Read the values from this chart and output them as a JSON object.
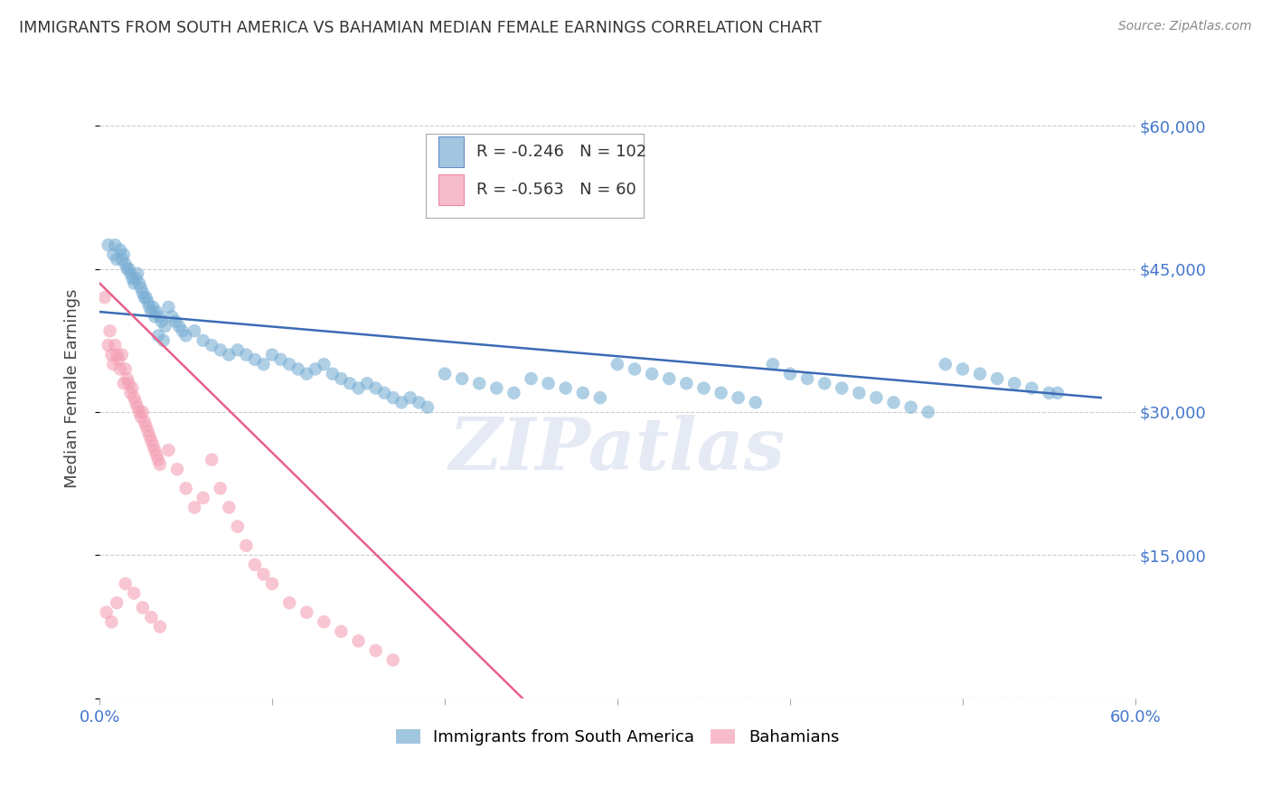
{
  "title": "IMMIGRANTS FROM SOUTH AMERICA VS BAHAMIAN MEDIAN FEMALE EARNINGS CORRELATION CHART",
  "source": "Source: ZipAtlas.com",
  "ylabel": "Median Female Earnings",
  "yticks": [
    0,
    15000,
    30000,
    45000,
    60000
  ],
  "ytick_labels": [
    "",
    "$15,000",
    "$30,000",
    "$45,000",
    "$60,000"
  ],
  "xlim": [
    0.0,
    0.6
  ],
  "ylim": [
    0,
    65000
  ],
  "legend1_label": "Immigrants from South America",
  "legend2_label": "Bahamians",
  "R1": "-0.246",
  "N1": "102",
  "R2": "-0.563",
  "N2": "60",
  "blue_color": "#7BAFD4",
  "pink_color": "#F4A0B5",
  "blue_line_color": "#3B6BB5",
  "pink_line_color": "#E8608A",
  "axis_label_color": "#4477CC",
  "watermark": "ZIPatlas",
  "blue_scatter_x": [
    0.005,
    0.008,
    0.01,
    0.012,
    0.013,
    0.015,
    0.016,
    0.018,
    0.019,
    0.02,
    0.021,
    0.022,
    0.023,
    0.024,
    0.025,
    0.026,
    0.027,
    0.028,
    0.029,
    0.03,
    0.031,
    0.032,
    0.033,
    0.035,
    0.036,
    0.038,
    0.04,
    0.042,
    0.044,
    0.046,
    0.048,
    0.05,
    0.055,
    0.06,
    0.065,
    0.07,
    0.075,
    0.08,
    0.085,
    0.09,
    0.095,
    0.1,
    0.105,
    0.11,
    0.115,
    0.12,
    0.125,
    0.13,
    0.135,
    0.14,
    0.145,
    0.15,
    0.155,
    0.16,
    0.165,
    0.17,
    0.175,
    0.18,
    0.185,
    0.19,
    0.2,
    0.21,
    0.22,
    0.23,
    0.24,
    0.25,
    0.26,
    0.27,
    0.28,
    0.29,
    0.3,
    0.31,
    0.32,
    0.33,
    0.34,
    0.35,
    0.36,
    0.37,
    0.38,
    0.39,
    0.4,
    0.41,
    0.42,
    0.43,
    0.44,
    0.45,
    0.46,
    0.47,
    0.48,
    0.49,
    0.5,
    0.51,
    0.52,
    0.53,
    0.54,
    0.55,
    0.555,
    0.009,
    0.014,
    0.017,
    0.034,
    0.037
  ],
  "blue_scatter_y": [
    47500,
    46500,
    46000,
    47000,
    46000,
    45500,
    45000,
    44500,
    44000,
    43500,
    44000,
    44500,
    43500,
    43000,
    42500,
    42000,
    42000,
    41500,
    41000,
    40500,
    41000,
    40000,
    40500,
    40000,
    39500,
    39000,
    41000,
    40000,
    39500,
    39000,
    38500,
    38000,
    38500,
    37500,
    37000,
    36500,
    36000,
    36500,
    36000,
    35500,
    35000,
    36000,
    35500,
    35000,
    34500,
    34000,
    34500,
    35000,
    34000,
    33500,
    33000,
    32500,
    33000,
    32500,
    32000,
    31500,
    31000,
    31500,
    31000,
    30500,
    34000,
    33500,
    33000,
    32500,
    32000,
    33500,
    33000,
    32500,
    32000,
    31500,
    35000,
    34500,
    34000,
    33500,
    33000,
    32500,
    32000,
    31500,
    31000,
    35000,
    34000,
    33500,
    33000,
    32500,
    32000,
    31500,
    31000,
    30500,
    30000,
    35000,
    34500,
    34000,
    33500,
    33000,
    32500,
    32000,
    32000,
    47500,
    46500,
    45000,
    38000,
    37500
  ],
  "pink_scatter_x": [
    0.003,
    0.005,
    0.006,
    0.007,
    0.008,
    0.009,
    0.01,
    0.011,
    0.012,
    0.013,
    0.014,
    0.015,
    0.016,
    0.017,
    0.018,
    0.019,
    0.02,
    0.021,
    0.022,
    0.023,
    0.024,
    0.025,
    0.026,
    0.027,
    0.028,
    0.029,
    0.03,
    0.031,
    0.032,
    0.033,
    0.034,
    0.035,
    0.04,
    0.045,
    0.05,
    0.055,
    0.06,
    0.065,
    0.07,
    0.075,
    0.08,
    0.085,
    0.09,
    0.095,
    0.1,
    0.11,
    0.12,
    0.13,
    0.14,
    0.15,
    0.16,
    0.17,
    0.004,
    0.007,
    0.01,
    0.015,
    0.02,
    0.025,
    0.03,
    0.035
  ],
  "pink_scatter_y": [
    42000,
    37000,
    38500,
    36000,
    35000,
    37000,
    36000,
    35500,
    34500,
    36000,
    33000,
    34500,
    33500,
    33000,
    32000,
    32500,
    31500,
    31000,
    30500,
    30000,
    29500,
    30000,
    29000,
    28500,
    28000,
    27500,
    27000,
    26500,
    26000,
    25500,
    25000,
    24500,
    26000,
    24000,
    22000,
    20000,
    21000,
    25000,
    22000,
    20000,
    18000,
    16000,
    14000,
    13000,
    12000,
    10000,
    9000,
    8000,
    7000,
    6000,
    5000,
    4000,
    9000,
    8000,
    10000,
    12000,
    11000,
    9500,
    8500,
    7500
  ],
  "blue_line_x": [
    0.0,
    0.58
  ],
  "blue_line_y": [
    40500,
    31500
  ],
  "pink_line_x": [
    0.0,
    0.245
  ],
  "pink_line_y": [
    43500,
    0
  ]
}
